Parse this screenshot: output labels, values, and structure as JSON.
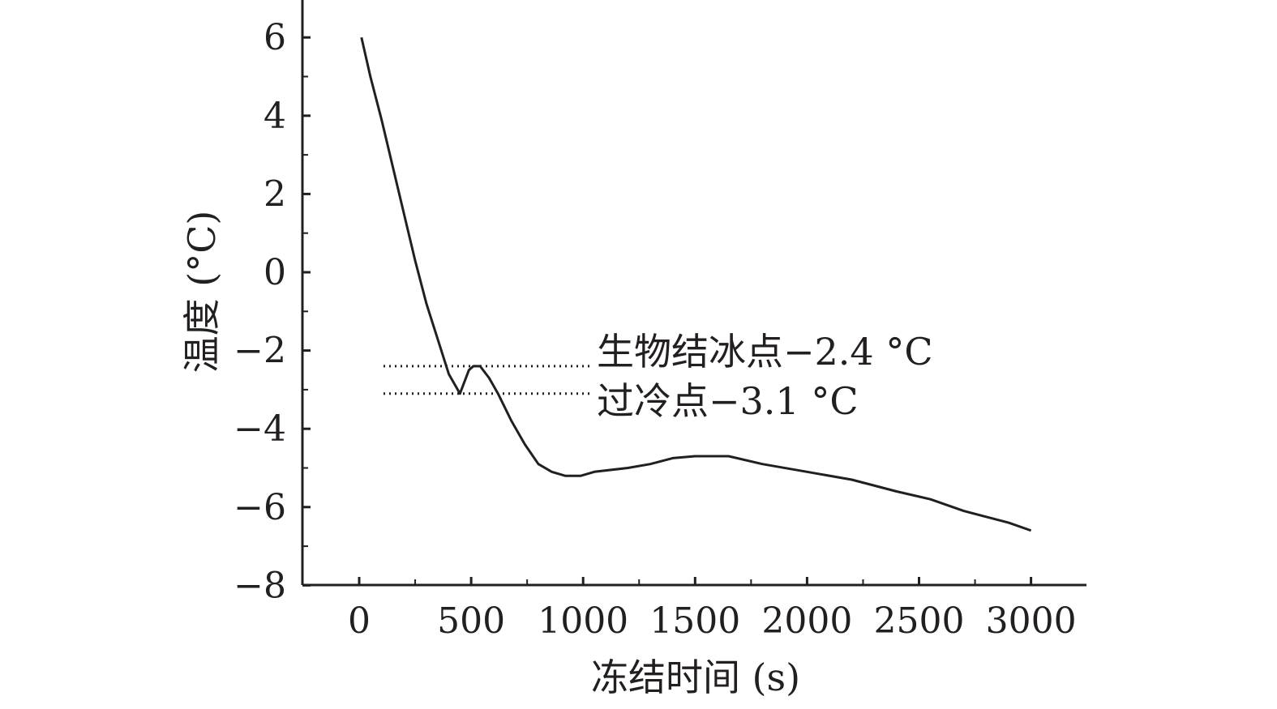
{
  "chart_data": {
    "type": "line",
    "title": "",
    "xlabel": "冻结时间 (s)",
    "ylabel": "温度 (°C)",
    "xlim": [
      -250,
      3250
    ],
    "ylim": [
      -8,
      7
    ],
    "x_ticks": [
      0,
      500,
      1000,
      1500,
      2000,
      2500,
      3000
    ],
    "x_tick_labels": [
      "0",
      "500",
      "1000",
      "1500",
      "2000",
      "2500",
      "3000"
    ],
    "y_ticks": [
      -8,
      -6,
      -4,
      -2,
      0,
      2,
      4,
      6
    ],
    "y_tick_labels": [
      "−8",
      "−6",
      "−4",
      "−2",
      "0",
      "2",
      "4",
      "6"
    ],
    "grid": false,
    "series": [
      {
        "x": [
          10,
          50,
          100,
          150,
          200,
          250,
          300,
          350,
          400,
          450,
          490,
          510,
          540,
          580,
          620,
          680,
          740,
          800,
          860,
          920,
          990,
          1050,
          1200,
          1300,
          1400,
          1500,
          1650,
          1800,
          2000,
          2200,
          2400,
          2550,
          2700,
          2900,
          3000
        ],
        "y": [
          6.0,
          5.0,
          3.9,
          2.7,
          1.5,
          0.3,
          -0.8,
          -1.7,
          -2.6,
          -3.1,
          -2.5,
          -2.4,
          -2.4,
          -2.7,
          -3.1,
          -3.8,
          -4.4,
          -4.9,
          -5.1,
          -5.2,
          -5.2,
          -5.1,
          -5.0,
          -4.9,
          -4.75,
          -4.7,
          -4.7,
          -4.9,
          -5.1,
          -5.3,
          -5.6,
          -5.8,
          -6.1,
          -6.4,
          -6.6
        ]
      }
    ],
    "reference_lines": [
      {
        "y": -2.4,
        "label": "生物结冰点−2.4 °C"
      },
      {
        "y": -3.1,
        "label": "过冷点−3.1 °C"
      }
    ]
  }
}
